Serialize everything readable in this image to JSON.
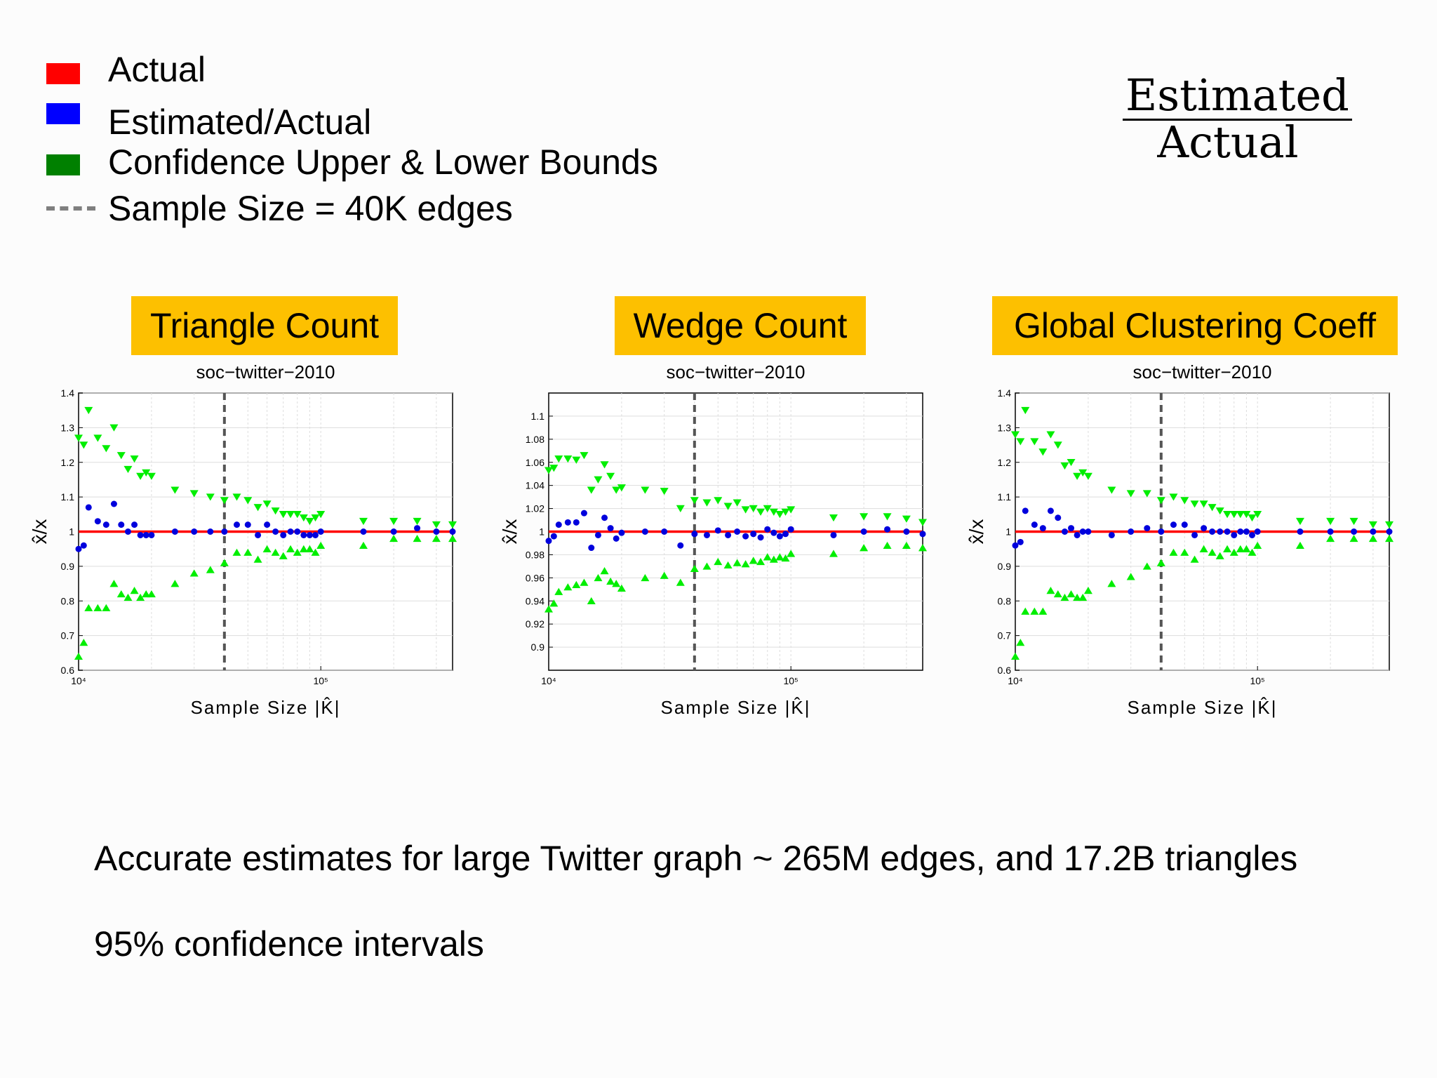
{
  "legend": {
    "items": [
      {
        "label": "Actual",
        "color": "#ff0000",
        "kind": "swatch"
      },
      {
        "label": "Estimated/Actual",
        "color": "#0000ff",
        "kind": "swatch"
      },
      {
        "label": "Confidence Upper & Lower Bounds",
        "color": "#008000",
        "kind": "swatch"
      },
      {
        "label": "Sample Size = 40K edges",
        "color": "#7f7f7f",
        "kind": "dash"
      }
    ]
  },
  "fraction": {
    "numerator": "Estimated",
    "denominator": "Actual"
  },
  "panels": [
    {
      "heading": "Triangle Count"
    },
    {
      "heading": "Wedge Count"
    },
    {
      "heading": "Global Clustering Coeff"
    }
  ],
  "chart_data": [
    {
      "type": "scatter",
      "title": "soc−twitter−2010",
      "xlabel": "Sample Size |K̂|",
      "ylabel": "x̂/x",
      "xscale": "log",
      "xlim": [
        10000,
        350000
      ],
      "ylim": [
        0.6,
        1.4
      ],
      "yticks": [
        0.6,
        0.7,
        0.8,
        0.9,
        1,
        1.1,
        1.2,
        1.3,
        1.4
      ],
      "ytick_labels": [
        "0.6",
        "0.7",
        "0.8",
        "0.9",
        "1",
        "1.1",
        "1.2",
        "1.3",
        "1.4"
      ],
      "xtick_labels": [
        "10⁴",
        "10⁵"
      ],
      "grid": true,
      "actual_line": 1,
      "sample_size_marker": 40000,
      "colors": {
        "actual": "#ff0000",
        "estimate": "#0000dd",
        "bounds": "#00ee00",
        "marker": "#555555"
      },
      "x": [
        10000,
        10500,
        11000,
        12000,
        13000,
        14000,
        15000,
        16000,
        17000,
        18000,
        19000,
        20000,
        25000,
        30000,
        35000,
        40000,
        45000,
        50000,
        55000,
        60000,
        65000,
        70000,
        75000,
        80000,
        85000,
        90000,
        95000,
        100000,
        150000,
        200000,
        250000,
        300000,
        350000
      ],
      "estimate": [
        0.95,
        0.96,
        1.07,
        1.03,
        1.02,
        1.08,
        1.02,
        1.0,
        1.02,
        0.99,
        0.99,
        0.99,
        1.0,
        1.0,
        1.0,
        1.0,
        1.02,
        1.02,
        0.99,
        1.02,
        1.0,
        0.99,
        1.0,
        1.0,
        0.99,
        0.99,
        0.99,
        1.0,
        1.0,
        1.0,
        1.01,
        1.0,
        1.0
      ],
      "upper": [
        1.27,
        1.25,
        1.35,
        1.27,
        1.24,
        1.3,
        1.22,
        1.18,
        1.21,
        1.16,
        1.17,
        1.16,
        1.12,
        1.11,
        1.1,
        1.09,
        1.1,
        1.09,
        1.07,
        1.08,
        1.06,
        1.05,
        1.05,
        1.05,
        1.04,
        1.03,
        1.04,
        1.05,
        1.03,
        1.03,
        1.03,
        1.02,
        1.02
      ],
      "lower": [
        0.64,
        0.68,
        0.78,
        0.78,
        0.78,
        0.85,
        0.82,
        0.81,
        0.83,
        0.81,
        0.82,
        0.82,
        0.85,
        0.88,
        0.89,
        0.91,
        0.94,
        0.94,
        0.92,
        0.95,
        0.94,
        0.93,
        0.95,
        0.94,
        0.95,
        0.95,
        0.94,
        0.96,
        0.96,
        0.98,
        0.98,
        0.98,
        0.98
      ]
    },
    {
      "type": "scatter",
      "title": "soc−twitter−2010",
      "xlabel": "Sample Size |K̂|",
      "ylabel": "x̂/x",
      "xscale": "log",
      "xlim": [
        10000,
        350000
      ],
      "ylim": [
        0.88,
        1.12
      ],
      "yticks": [
        0.9,
        0.92,
        0.94,
        0.96,
        0.98,
        1,
        1.02,
        1.04,
        1.06,
        1.08,
        1.1
      ],
      "ytick_labels": [
        "0.9",
        "0.92",
        "0.94",
        "0.96",
        "0.98",
        "1",
        "1.02",
        "1.04",
        "1.06",
        "1.08",
        "1.1"
      ],
      "xtick_labels": [
        "10⁴",
        "10⁵"
      ],
      "grid": true,
      "actual_line": 1,
      "sample_size_marker": 40000,
      "colors": {
        "actual": "#ff0000",
        "estimate": "#0000dd",
        "bounds": "#00ee00",
        "marker": "#555555"
      },
      "x": [
        10000,
        10500,
        11000,
        12000,
        13000,
        14000,
        15000,
        16000,
        17000,
        18000,
        19000,
        20000,
        25000,
        30000,
        35000,
        40000,
        45000,
        50000,
        55000,
        60000,
        65000,
        70000,
        75000,
        80000,
        85000,
        90000,
        95000,
        100000,
        150000,
        200000,
        250000,
        300000,
        350000
      ],
      "estimate": [
        0.992,
        0.996,
        1.006,
        1.008,
        1.008,
        1.016,
        0.986,
        0.997,
        1.012,
        1.003,
        0.994,
        0.999,
        1.0,
        1.0,
        0.988,
        0.998,
        0.997,
        1.001,
        0.997,
        1.0,
        0.996,
        0.998,
        0.995,
        1.002,
        0.999,
        0.996,
        0.998,
        1.002,
        0.997,
        1.0,
        1.002,
        1.0,
        0.998
      ],
      "upper": [
        1.053,
        1.055,
        1.063,
        1.063,
        1.062,
        1.066,
        1.036,
        1.045,
        1.058,
        1.048,
        1.036,
        1.038,
        1.036,
        1.035,
        1.02,
        1.027,
        1.025,
        1.027,
        1.022,
        1.025,
        1.019,
        1.02,
        1.017,
        1.02,
        1.017,
        1.015,
        1.017,
        1.019,
        1.012,
        1.013,
        1.013,
        1.011,
        1.008
      ],
      "lower": [
        0.933,
        0.938,
        0.948,
        0.952,
        0.954,
        0.956,
        0.94,
        0.96,
        0.966,
        0.957,
        0.955,
        0.951,
        0.96,
        0.962,
        0.956,
        0.968,
        0.97,
        0.974,
        0.971,
        0.973,
        0.972,
        0.975,
        0.974,
        0.978,
        0.976,
        0.978,
        0.977,
        0.981,
        0.981,
        0.986,
        0.988,
        0.988,
        0.986
      ]
    },
    {
      "type": "scatter",
      "title": "soc−twitter−2010",
      "xlabel": "Sample Size |K̂|",
      "ylabel": "x̂/x",
      "xscale": "log",
      "xlim": [
        10000,
        350000
      ],
      "ylim": [
        0.6,
        1.4
      ],
      "yticks": [
        0.6,
        0.7,
        0.8,
        0.9,
        1,
        1.1,
        1.2,
        1.3,
        1.4
      ],
      "ytick_labels": [
        "0.6",
        "0.7",
        "0.8",
        "0.9",
        "1",
        "1.1",
        "1.2",
        "1.3",
        "1.4"
      ],
      "xtick_labels": [
        "10⁴",
        "10⁵"
      ],
      "grid": true,
      "actual_line": 1,
      "sample_size_marker": 40000,
      "colors": {
        "actual": "#ff0000",
        "estimate": "#0000dd",
        "bounds": "#00ee00",
        "marker": "#555555"
      },
      "x": [
        10000,
        10500,
        11000,
        12000,
        13000,
        14000,
        15000,
        16000,
        17000,
        18000,
        19000,
        20000,
        25000,
        30000,
        35000,
        40000,
        45000,
        50000,
        55000,
        60000,
        65000,
        70000,
        75000,
        80000,
        85000,
        90000,
        95000,
        100000,
        150000,
        200000,
        250000,
        300000,
        350000
      ],
      "estimate": [
        0.96,
        0.97,
        1.06,
        1.02,
        1.01,
        1.06,
        1.04,
        1.0,
        1.01,
        0.99,
        1.0,
        1.0,
        0.99,
        1.0,
        1.01,
        1.0,
        1.02,
        1.02,
        0.99,
        1.01,
        1.0,
        1.0,
        1.0,
        0.99,
        1.0,
        1.0,
        0.99,
        1.0,
        1.0,
        1.0,
        1.0,
        1.0,
        1.0
      ],
      "upper": [
        1.28,
        1.26,
        1.35,
        1.26,
        1.23,
        1.28,
        1.25,
        1.19,
        1.2,
        1.16,
        1.17,
        1.16,
        1.12,
        1.11,
        1.11,
        1.09,
        1.1,
        1.09,
        1.08,
        1.08,
        1.07,
        1.06,
        1.05,
        1.05,
        1.05,
        1.05,
        1.04,
        1.05,
        1.03,
        1.03,
        1.03,
        1.02,
        1.02
      ],
      "lower": [
        0.64,
        0.68,
        0.77,
        0.77,
        0.77,
        0.83,
        0.82,
        0.81,
        0.82,
        0.81,
        0.81,
        0.83,
        0.85,
        0.87,
        0.9,
        0.91,
        0.94,
        0.94,
        0.92,
        0.95,
        0.94,
        0.93,
        0.95,
        0.94,
        0.95,
        0.95,
        0.94,
        0.96,
        0.96,
        0.98,
        0.98,
        0.98,
        0.98
      ]
    }
  ],
  "captions": {
    "line1": "Accurate estimates for large Twitter graph ~ 265M edges, and 17.2B triangles",
    "line2": "95% confidence intervals"
  }
}
